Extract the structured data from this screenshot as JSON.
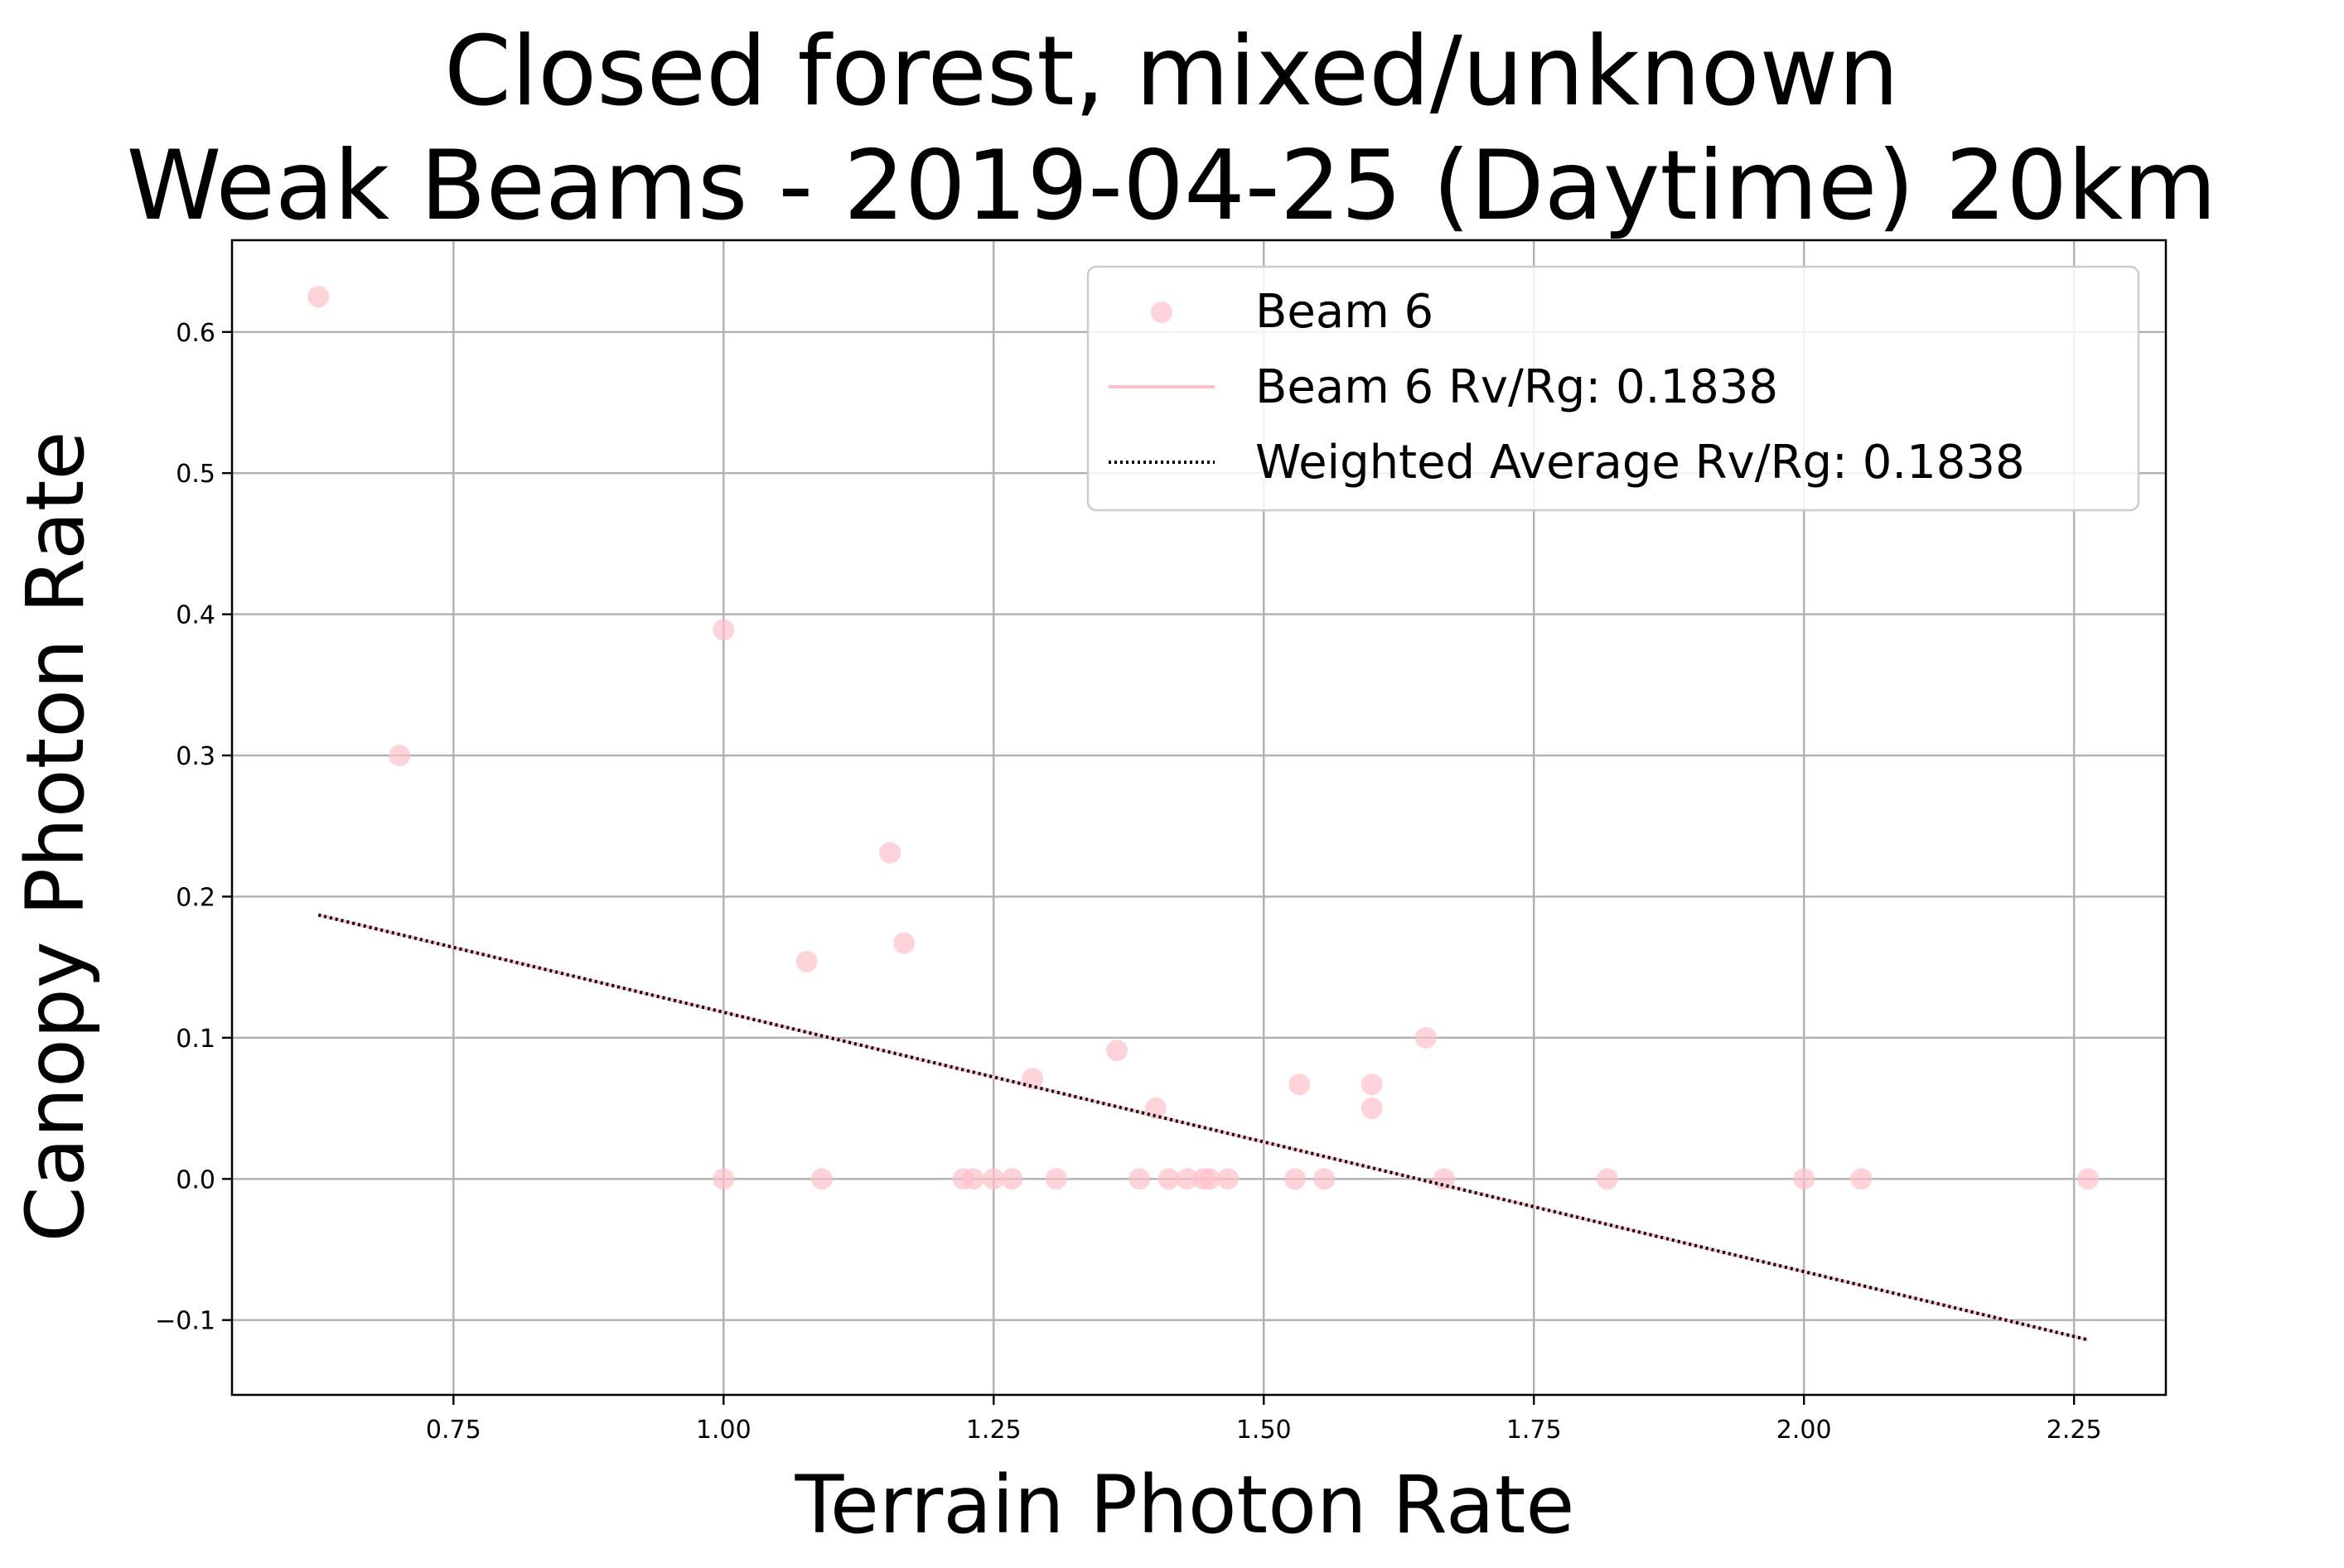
{
  "chart_data": {
    "type": "scatter",
    "title_lines": [
      "Closed forest, mixed/unknown",
      "Weak Beams - 2019-04-25 (Daytime) 20km"
    ],
    "xlabel": "Terrain Photon Rate",
    "ylabel": "Canopy Photon Rate",
    "xlim": [
      0.545,
      2.335
    ],
    "ylim": [
      -0.153,
      0.665
    ],
    "xticks": [
      0.75,
      1.0,
      1.25,
      1.5,
      1.75,
      2.0,
      2.25
    ],
    "xtick_labels": [
      "0.75",
      "1.00",
      "1.25",
      "1.50",
      "1.75",
      "2.00",
      "2.25"
    ],
    "yticks": [
      -0.1,
      0.0,
      0.1,
      0.2,
      0.3,
      0.4,
      0.5,
      0.6
    ],
    "ytick_labels": [
      "−0.1",
      "0.0",
      "0.1",
      "0.2",
      "0.3",
      "0.4",
      "0.5",
      "0.6"
    ],
    "grid": true,
    "legend_position": "top-right",
    "series": [
      {
        "name": "Beam 6",
        "kind": "scatter",
        "color": "#ffc0cb",
        "points": [
          [
            0.625,
            0.625
          ],
          [
            0.7,
            0.3
          ],
          [
            1.0,
            0.389
          ],
          [
            1.0,
            0.0
          ],
          [
            1.077,
            0.154
          ],
          [
            1.091,
            0.0
          ],
          [
            1.154,
            0.231
          ],
          [
            1.167,
            0.167
          ],
          [
            1.222,
            0.0
          ],
          [
            1.231,
            0.0
          ],
          [
            1.25,
            0.0
          ],
          [
            1.267,
            0.0
          ],
          [
            1.286,
            0.071
          ],
          [
            1.308,
            0.0
          ],
          [
            1.364,
            0.091
          ],
          [
            1.385,
            0.0
          ],
          [
            1.4,
            0.05
          ],
          [
            1.412,
            0.0
          ],
          [
            1.429,
            0.0
          ],
          [
            1.444,
            0.0
          ],
          [
            1.45,
            0.0
          ],
          [
            1.467,
            0.0
          ],
          [
            1.529,
            0.0
          ],
          [
            1.533,
            0.067
          ],
          [
            1.556,
            0.0
          ],
          [
            1.6,
            0.067
          ],
          [
            1.6,
            0.05
          ],
          [
            1.65,
            0.1
          ],
          [
            1.667,
            0.0
          ],
          [
            1.818,
            0.0
          ],
          [
            2.0,
            0.0
          ],
          [
            2.053,
            0.0
          ],
          [
            2.263,
            0.0
          ]
        ]
      },
      {
        "name": "Beam 6 Rv/Rg: 0.1838",
        "kind": "line",
        "color": "#ffc0cb",
        "points": [
          [
            0.625,
            0.187
          ],
          [
            2.263,
            -0.114
          ]
        ]
      },
      {
        "name": "Weighted Average Rv/Rg: 0.1838",
        "kind": "line",
        "dash": "dotted",
        "color": "#000000",
        "points": [
          [
            0.625,
            0.187
          ],
          [
            2.263,
            -0.114
          ]
        ]
      }
    ]
  }
}
